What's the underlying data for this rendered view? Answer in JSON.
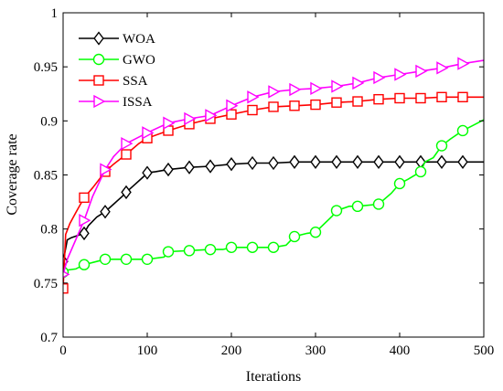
{
  "chart_data": {
    "type": "line",
    "title": "",
    "xlabel": "Iterations",
    "ylabel": "Coverage rate",
    "xlim": [
      0,
      500
    ],
    "ylim": [
      0.7,
      1
    ],
    "xticks": [
      0,
      100,
      200,
      300,
      400,
      500
    ],
    "xtick_labels": [
      "0",
      "100",
      "200",
      "300",
      "400",
      "500"
    ],
    "yticks": [
      0.7,
      0.75,
      0.8,
      0.85,
      0.9,
      0.95,
      1
    ],
    "ytick_labels": [
      "0.7",
      "0.75",
      "0.8",
      "0.85",
      "0.9",
      "0.95",
      "1"
    ],
    "grid": false,
    "legend_position": "top-left",
    "series": [
      {
        "name": "WOA",
        "color": "#000000",
        "marker": "diamond",
        "x": [
          0,
          5,
          10,
          25,
          30,
          40,
          50,
          60,
          70,
          75,
          85,
          95,
          100,
          110,
          125,
          150,
          175,
          200,
          225,
          250,
          275,
          300,
          325,
          350,
          375,
          400,
          425,
          450,
          475,
          500
        ],
        "y": [
          0.77,
          0.79,
          0.792,
          0.796,
          0.803,
          0.811,
          0.816,
          0.823,
          0.83,
          0.834,
          0.841,
          0.848,
          0.852,
          0.853,
          0.855,
          0.857,
          0.858,
          0.86,
          0.861,
          0.861,
          0.862,
          0.862,
          0.862,
          0.862,
          0.862,
          0.862,
          0.862,
          0.862,
          0.862,
          0.862
        ],
        "markers_x": [
          0,
          25,
          50,
          75,
          100,
          125,
          150,
          175,
          200,
          225,
          250,
          275,
          300,
          325,
          350,
          375,
          400,
          425,
          450,
          475
        ]
      },
      {
        "name": "GWO",
        "color": "#00ff00",
        "marker": "circle",
        "x": [
          0,
          5,
          15,
          25,
          40,
          50,
          75,
          100,
          120,
          125,
          150,
          175,
          190,
          200,
          225,
          250,
          265,
          275,
          290,
          300,
          320,
          325,
          340,
          350,
          375,
          390,
          400,
          410,
          425,
          430,
          440,
          450,
          460,
          475,
          490,
          500
        ],
        "y": [
          0.76,
          0.762,
          0.763,
          0.767,
          0.77,
          0.772,
          0.772,
          0.772,
          0.774,
          0.779,
          0.78,
          0.781,
          0.781,
          0.783,
          0.783,
          0.783,
          0.785,
          0.793,
          0.796,
          0.797,
          0.812,
          0.817,
          0.821,
          0.821,
          0.823,
          0.833,
          0.842,
          0.846,
          0.853,
          0.862,
          0.866,
          0.877,
          0.883,
          0.891,
          0.897,
          0.901
        ],
        "markers_x": [
          0,
          25,
          50,
          75,
          100,
          125,
          150,
          175,
          200,
          225,
          250,
          275,
          300,
          325,
          350,
          375,
          400,
          425,
          450,
          475
        ]
      },
      {
        "name": "SSA",
        "color": "#ff0000",
        "marker": "square",
        "x": [
          0,
          3,
          8,
          15,
          25,
          35,
          50,
          60,
          75,
          90,
          100,
          125,
          150,
          175,
          200,
          225,
          250,
          275,
          300,
          325,
          350,
          375,
          400,
          425,
          450,
          475,
          500
        ],
        "y": [
          0.745,
          0.795,
          0.805,
          0.815,
          0.829,
          0.838,
          0.853,
          0.86,
          0.869,
          0.879,
          0.884,
          0.891,
          0.897,
          0.902,
          0.906,
          0.91,
          0.913,
          0.914,
          0.915,
          0.917,
          0.918,
          0.92,
          0.921,
          0.921,
          0.922,
          0.922,
          0.922
        ],
        "markers_x": [
          0,
          25,
          50,
          75,
          100,
          125,
          150,
          175,
          200,
          225,
          250,
          275,
          300,
          325,
          350,
          375,
          400,
          425,
          450,
          475
        ]
      },
      {
        "name": "ISSA",
        "color": "#ff00ff",
        "marker": "triangle-right",
        "x": [
          0,
          5,
          15,
          25,
          35,
          50,
          60,
          75,
          85,
          100,
          125,
          150,
          175,
          200,
          225,
          250,
          275,
          300,
          325,
          350,
          375,
          400,
          425,
          450,
          475,
          500
        ],
        "y": [
          0.758,
          0.772,
          0.79,
          0.808,
          0.83,
          0.855,
          0.867,
          0.879,
          0.883,
          0.889,
          0.898,
          0.902,
          0.905,
          0.914,
          0.922,
          0.927,
          0.929,
          0.93,
          0.932,
          0.935,
          0.94,
          0.943,
          0.946,
          0.949,
          0.953,
          0.956
        ],
        "markers_x": [
          0,
          25,
          50,
          75,
          100,
          125,
          150,
          175,
          200,
          225,
          250,
          275,
          300,
          325,
          350,
          375,
          400,
          425,
          450,
          475
        ]
      }
    ]
  }
}
